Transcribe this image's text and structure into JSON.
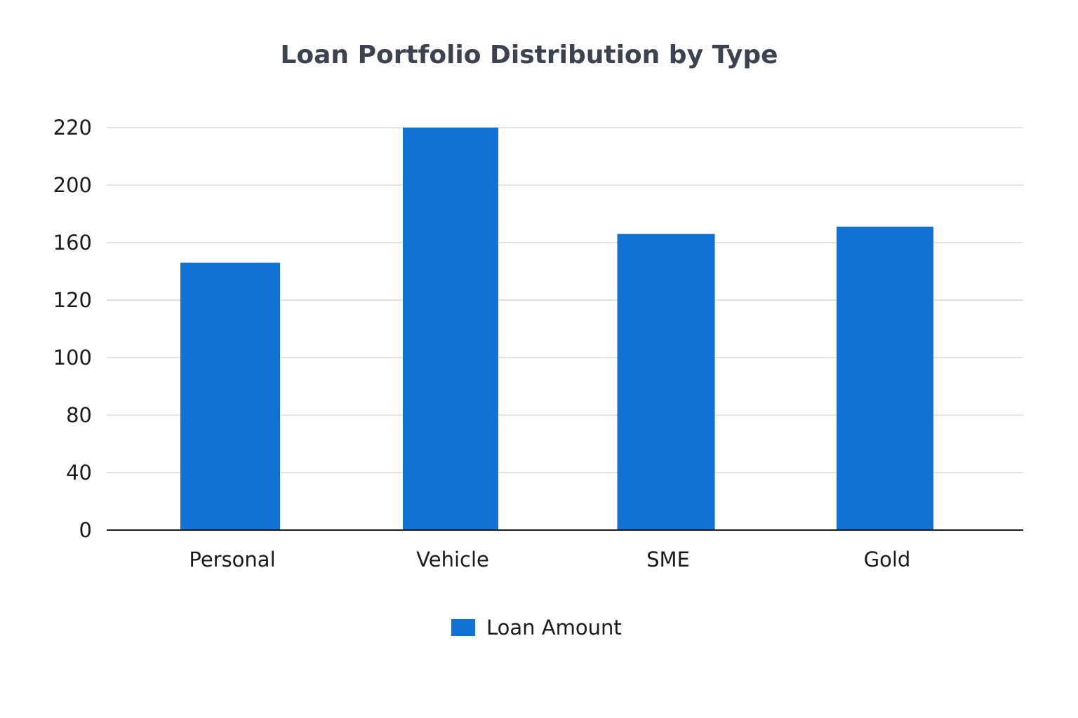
{
  "chart_data": {
    "type": "bar",
    "title": "Loan Portfolio Distribution by Type",
    "xlabel": "",
    "ylabel": "",
    "categories": [
      "Personal",
      "Vehicle",
      "SME",
      "Gold"
    ],
    "series": [
      {
        "name": "Loan Amount",
        "values": [
          146,
          220,
          166,
          171
        ]
      }
    ],
    "y_tick_labels": [
      "0",
      "40",
      "80",
      "100",
      "120",
      "160",
      "200",
      "220"
    ],
    "grid": true,
    "legend_position": "bottom",
    "colors": {
      "bar": "#1271d4",
      "grid": "#dcdcdc",
      "axis": "#1a1a1a"
    }
  }
}
